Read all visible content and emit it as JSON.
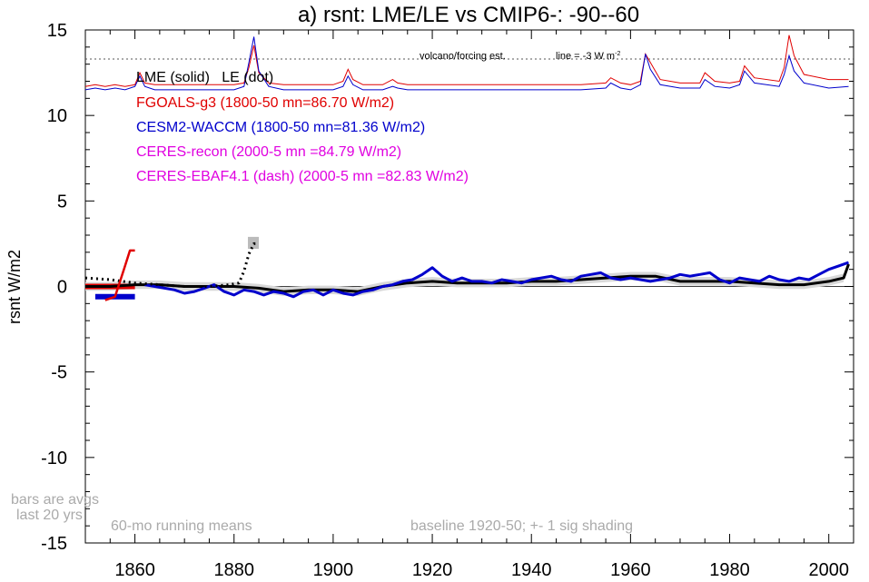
{
  "chart_data": {
    "type": "line",
    "title": "a) rsnt: LME/LE vs CMIP6-: -90--60",
    "ylabel": "rsnt W/m2",
    "xlabel": "",
    "xlim": [
      1850,
      2005
    ],
    "ylim": [
      -15,
      15
    ],
    "xticks": [
      1860,
      1880,
      1900,
      1920,
      1940,
      1960,
      1980,
      2000
    ],
    "yticks": [
      -15,
      -10,
      -5,
      0,
      5,
      10,
      15
    ],
    "annotations": {
      "volcano": "volcano/forcing est.",
      "line": "line = -3 W m",
      "line_sup": "-2",
      "lme_le": "LME (solid)   LE (dot)",
      "bars1": "bars are avgs",
      "bars2": "last 20 yrs",
      "running": "60-mo running means",
      "baseline": "baseline 1920-50; +- 1 sig shading"
    },
    "legend": [
      {
        "text": "FGOALS-g3 (1800-50 mn=86.70 W/m2)",
        "color": "#e00000"
      },
      {
        "text": "CESM2-WACCM (1800-50 mn=81.36 W/m2)",
        "color": "#0000cc"
      },
      {
        "text": "CERES-recon (2000-5 mn =84.79 W/m2)",
        "color": "#e000e0"
      },
      {
        "text": "CERES-EBAF4.1 (dash) (2000-5 mn =82.83 W/m2)",
        "color": "#e000e0"
      }
    ],
    "volcano_series": [
      {
        "name": "FGOALS-g3",
        "color": "#e00000",
        "x": [
          1850,
          1852,
          1854,
          1856,
          1858,
          1860,
          1861,
          1862,
          1864,
          1870,
          1880,
          1882,
          1883,
          1884,
          1885,
          1887,
          1890,
          1895,
          1900,
          1902,
          1903,
          1904,
          1906,
          1910,
          1912,
          1913,
          1915,
          1920,
          1930,
          1940,
          1950,
          1955,
          1956,
          1958,
          1960,
          1962,
          1963,
          1964,
          1966,
          1970,
          1974,
          1975,
          1977,
          1980,
          1982,
          1983,
          1985,
          1990,
          1991,
          1992,
          1993,
          1995,
          2000,
          2004
        ],
        "y": [
          11.7,
          11.8,
          11.7,
          11.8,
          11.7,
          11.8,
          12.5,
          11.9,
          11.8,
          11.8,
          11.8,
          11.9,
          12.8,
          14.1,
          12.5,
          11.9,
          11.8,
          11.8,
          11.8,
          12.0,
          12.7,
          12.1,
          11.8,
          11.8,
          12.1,
          11.9,
          11.8,
          11.8,
          11.8,
          11.8,
          11.8,
          11.9,
          12.2,
          11.9,
          11.8,
          12.0,
          13.6,
          13.1,
          12.1,
          11.9,
          11.9,
          12.5,
          12.0,
          11.9,
          12.0,
          12.9,
          12.2,
          12.0,
          12.8,
          14.7,
          13.5,
          12.4,
          12.1,
          12.1
        ]
      },
      {
        "name": "CESM2-WACCM",
        "color": "#0000cc",
        "x": [
          1850,
          1852,
          1854,
          1856,
          1858,
          1860,
          1861,
          1862,
          1864,
          1870,
          1880,
          1882,
          1883,
          1884,
          1885,
          1887,
          1890,
          1895,
          1900,
          1902,
          1903,
          1904,
          1906,
          1910,
          1912,
          1913,
          1915,
          1920,
          1930,
          1940,
          1950,
          1955,
          1956,
          1958,
          1960,
          1962,
          1963,
          1964,
          1966,
          1970,
          1974,
          1975,
          1977,
          1980,
          1982,
          1983,
          1985,
          1990,
          1991,
          1992,
          1993,
          1995,
          2000,
          2004
        ],
        "y": [
          11.5,
          11.6,
          11.5,
          11.6,
          11.5,
          11.7,
          12.3,
          11.7,
          11.5,
          11.5,
          11.5,
          11.7,
          13.1,
          14.6,
          12.6,
          11.7,
          11.5,
          11.5,
          11.5,
          11.7,
          12.3,
          11.8,
          11.5,
          11.5,
          11.7,
          11.6,
          11.5,
          11.5,
          11.5,
          11.5,
          11.5,
          11.6,
          11.9,
          11.6,
          11.5,
          11.8,
          13.6,
          12.7,
          11.8,
          11.6,
          11.6,
          12.1,
          11.7,
          11.6,
          11.8,
          12.6,
          11.9,
          11.7,
          12.4,
          13.5,
          12.6,
          11.9,
          11.6,
          11.7
        ]
      }
    ],
    "series": [
      {
        "name": "LME (solid)",
        "color": "#000000",
        "x": [
          1850,
          1855,
          1860,
          1865,
          1870,
          1875,
          1880,
          1885,
          1890,
          1895,
          1900,
          1905,
          1910,
          1915,
          1920,
          1925,
          1930,
          1935,
          1940,
          1945,
          1950,
          1955,
          1960,
          1965,
          1970,
          1975,
          1980,
          1985,
          1990,
          1995,
          2000,
          2003,
          2004
        ],
        "y": [
          0.0,
          0.0,
          0.1,
          0.1,
          0.0,
          0.0,
          0.0,
          -0.1,
          -0.3,
          -0.2,
          -0.2,
          -0.3,
          0.0,
          0.2,
          0.3,
          0.2,
          0.2,
          0.2,
          0.3,
          0.3,
          0.4,
          0.5,
          0.6,
          0.6,
          0.3,
          0.3,
          0.3,
          0.2,
          0.1,
          0.1,
          0.3,
          0.5,
          1.3
        ]
      },
      {
        "name": "CESM2-WACCM",
        "color": "#0000cc",
        "x": [
          1862,
          1864,
          1866,
          1868,
          1870,
          1872,
          1874,
          1876,
          1878,
          1880,
          1882,
          1884,
          1886,
          1888,
          1890,
          1892,
          1894,
          1896,
          1898,
          1900,
          1902,
          1904,
          1906,
          1908,
          1910,
          1912,
          1914,
          1916,
          1918,
          1920,
          1922,
          1924,
          1926,
          1928,
          1930,
          1932,
          1934,
          1936,
          1938,
          1940,
          1942,
          1944,
          1946,
          1948,
          1950,
          1952,
          1954,
          1956,
          1958,
          1960,
          1962,
          1964,
          1966,
          1968,
          1970,
          1972,
          1974,
          1976,
          1978,
          1980,
          1982,
          1984,
          1986,
          1988,
          1990,
          1992,
          1994,
          1996,
          1998,
          2000,
          2002,
          2004
        ],
        "y": [
          0.1,
          0.0,
          -0.1,
          -0.2,
          -0.4,
          -0.3,
          -0.1,
          0.1,
          -0.3,
          -0.5,
          -0.2,
          -0.3,
          -0.5,
          -0.3,
          -0.4,
          -0.6,
          -0.3,
          -0.2,
          -0.5,
          -0.2,
          -0.4,
          -0.5,
          -0.3,
          -0.2,
          0.0,
          0.1,
          0.3,
          0.4,
          0.7,
          1.1,
          0.6,
          0.3,
          0.5,
          0.3,
          0.3,
          0.2,
          0.4,
          0.3,
          0.2,
          0.4,
          0.5,
          0.6,
          0.4,
          0.3,
          0.6,
          0.7,
          0.8,
          0.5,
          0.4,
          0.5,
          0.4,
          0.3,
          0.4,
          0.5,
          0.7,
          0.6,
          0.7,
          0.8,
          0.4,
          0.2,
          0.5,
          0.4,
          0.3,
          0.6,
          0.4,
          0.3,
          0.5,
          0.4,
          0.7,
          1.0,
          1.2,
          1.4
        ]
      },
      {
        "name": "LE (dot)",
        "color": "#000000",
        "style": "dotted",
        "x": [
          1850,
          1855,
          1860,
          1865,
          1870,
          1875,
          1879,
          1881,
          1882,
          1883,
          1884,
          1885
        ],
        "y": [
          0.5,
          0.4,
          0.2,
          0.1,
          0.0,
          0.0,
          0.1,
          0.2,
          0.9,
          1.9,
          2.5,
          2.5
        ]
      },
      {
        "name": "FGOALS-g3 step",
        "color": "#e00000",
        "x": [
          1854,
          1856,
          1857,
          1858,
          1859,
          1860
        ],
        "y": [
          -0.8,
          -0.6,
          0.3,
          1.2,
          2.1,
          2.1
        ]
      }
    ],
    "bars": [
      {
        "name": "FGOALS-g3",
        "color": "#e00000",
        "x0": 1850,
        "x1": 1860,
        "y": 0.0
      },
      {
        "name": "CESM2-WACCM",
        "color": "#0000cc",
        "x0": 1852,
        "x1": 1860,
        "y": -0.6
      }
    ],
    "grid": false
  }
}
